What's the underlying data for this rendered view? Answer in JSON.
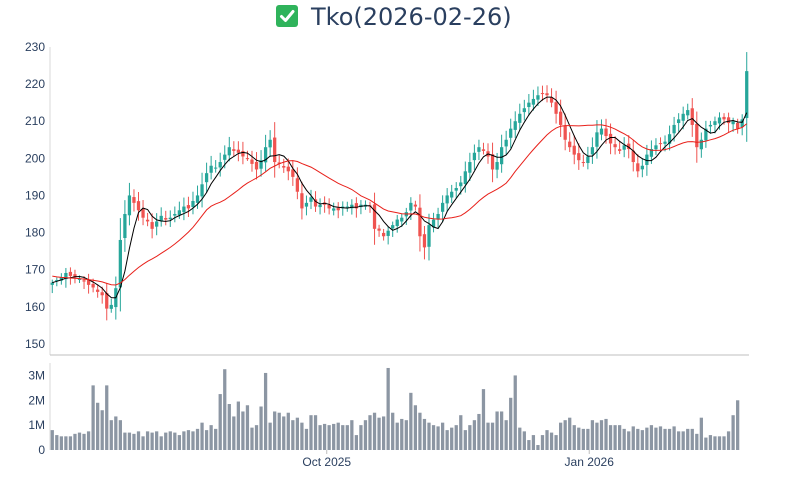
{
  "title": {
    "icon": "check-mark-button-icon",
    "text": "Tko(2026-02-26)"
  },
  "colors": {
    "up": "#26a69a",
    "down": "#ef5350",
    "ma_short": "#000000",
    "ma_long": "#e8201a",
    "volume": "#8c96a3",
    "icon_bg": "#2fb35b",
    "text": "#2a3f5f"
  },
  "chart_data": [
    {
      "type": "candlestick",
      "title": "Tko(2026-02-26)",
      "ylim": [
        147,
        230
      ],
      "y_ticks": [
        150,
        160,
        170,
        180,
        190,
        200,
        210,
        220,
        230
      ],
      "x_ticks": [
        {
          "label": "Oct 2025",
          "date": "2025-10-01"
        },
        {
          "label": "Jan 2026",
          "date": "2026-01-01"
        }
      ],
      "x_range": [
        "2025-06-26",
        "2026-02-26"
      ],
      "grid": false,
      "legend": "none",
      "close": [
        166.5,
        167.2,
        168.0,
        169.1,
        168.3,
        167.9,
        167.5,
        166.8,
        165.9,
        165.2,
        164.0,
        163.1,
        159.5,
        160.5,
        165.0,
        178.0,
        185.0,
        190.0,
        188.0,
        186.0,
        184.0,
        183.0,
        181.0,
        183.0,
        184.5,
        183.5,
        184.0,
        185.0,
        186.0,
        187.0,
        186.5,
        188.5,
        190.0,
        193.0,
        196.0,
        198.0,
        197.5,
        199.0,
        201.0,
        203.0,
        202.0,
        201.5,
        200.5,
        200.0,
        198.5,
        197.0,
        199.5,
        203.0,
        205.0,
        199.0,
        198.5,
        197.5,
        196.5,
        195.0,
        191.0,
        186.5,
        188.0,
        189.5,
        187.0,
        187.5,
        187.5,
        186.5,
        186.5,
        186.0,
        187.0,
        187.0,
        187.5,
        186.5,
        187.5,
        187.5,
        187.0,
        181.0,
        180.5,
        179.0,
        180.5,
        182.0,
        183.5,
        184.0,
        185.5,
        188.0,
        187.0,
        179.0,
        176.0,
        182.0,
        183.5,
        185.0,
        188.0,
        190.0,
        191.0,
        192.0,
        193.5,
        196.5,
        199.0,
        201.5,
        203.0,
        202.0,
        200.5,
        197.0,
        199.0,
        203.0,
        205.0,
        208.0,
        210.0,
        212.0,
        213.5,
        215.0,
        216.0,
        217.0,
        217.5,
        217.0,
        215.0,
        212.0,
        209.0,
        205.0,
        203.0,
        201.0,
        199.5,
        199.0,
        200.5,
        203.0,
        207.0,
        208.0,
        206.0,
        204.0,
        203.0,
        202.0,
        203.5,
        202.5,
        199.0,
        196.5,
        198.0,
        201.0,
        202.5,
        203.5,
        204.0,
        204.5,
        206.5,
        209.0,
        210.5,
        212.0,
        213.0,
        209.0,
        203.0,
        205.0,
        208.0,
        209.0,
        210.0,
        211.0,
        210.5,
        209.5,
        210.0,
        208.0,
        210.5,
        223.5
      ]
    },
    {
      "type": "bar",
      "title": "",
      "ylim": [
        0,
        3.5
      ],
      "y_ticks": [
        {
          "value": 0,
          "label": "0"
        },
        {
          "value": 1,
          "label": "1M"
        },
        {
          "value": 2,
          "label": "2M"
        },
        {
          "value": 3,
          "label": "3M"
        }
      ],
      "x_ticks": [
        {
          "label": "Oct 2025",
          "date": "2025-10-01"
        },
        {
          "label": "Jan 2026",
          "date": "2026-01-01"
        }
      ],
      "values_millions": [
        0.8,
        0.6,
        0.55,
        0.55,
        0.55,
        0.65,
        0.7,
        0.65,
        0.75,
        2.6,
        1.9,
        1.6,
        2.6,
        1.2,
        1.35,
        1.2,
        0.7,
        0.7,
        0.65,
        0.75,
        0.55,
        0.75,
        0.7,
        0.75,
        0.55,
        0.7,
        0.75,
        0.7,
        0.6,
        0.75,
        0.8,
        0.75,
        0.85,
        1.1,
        0.8,
        1.0,
        0.85,
        2.25,
        3.25,
        1.85,
        1.35,
        1.95,
        1.55,
        1.8,
        0.9,
        1.0,
        1.75,
        3.1,
        1.1,
        1.55,
        1.5,
        1.35,
        1.5,
        1.2,
        1.3,
        1.1,
        0.85,
        1.4,
        1.4,
        1.0,
        1.05,
        1.0,
        1.05,
        1.1,
        1.0,
        1.0,
        1.2,
        0.6,
        1.0,
        1.2,
        1.4,
        1.5,
        1.3,
        1.35,
        3.3,
        1.5,
        1.1,
        1.25,
        1.2,
        2.3,
        1.8,
        1.5,
        1.25,
        1.1,
        1.0,
        0.95,
        1.1,
        0.8,
        0.9,
        1.0,
        1.4,
        0.8,
        1.0,
        1.2,
        1.45,
        2.45,
        1.1,
        1.1,
        1.55,
        1.55,
        1.2,
        2.1,
        3.0,
        0.9,
        0.75,
        0.4,
        0.6,
        0.2,
        0.6,
        0.8,
        0.7,
        0.6,
        1.1,
        1.2,
        1.3,
        1.0,
        0.9,
        0.85,
        0.85,
        1.2,
        1.1,
        1.2,
        1.25,
        1.0,
        1.0,
        1.0,
        0.85,
        0.75,
        0.95,
        0.85,
        0.8,
        0.9,
        1.0,
        0.9,
        0.95,
        0.85,
        0.85,
        0.95,
        0.75,
        0.75,
        0.85,
        0.85,
        0.65,
        1.3,
        0.5,
        0.6,
        0.55,
        0.55,
        0.55,
        0.75,
        1.4,
        2.0
      ]
    }
  ]
}
